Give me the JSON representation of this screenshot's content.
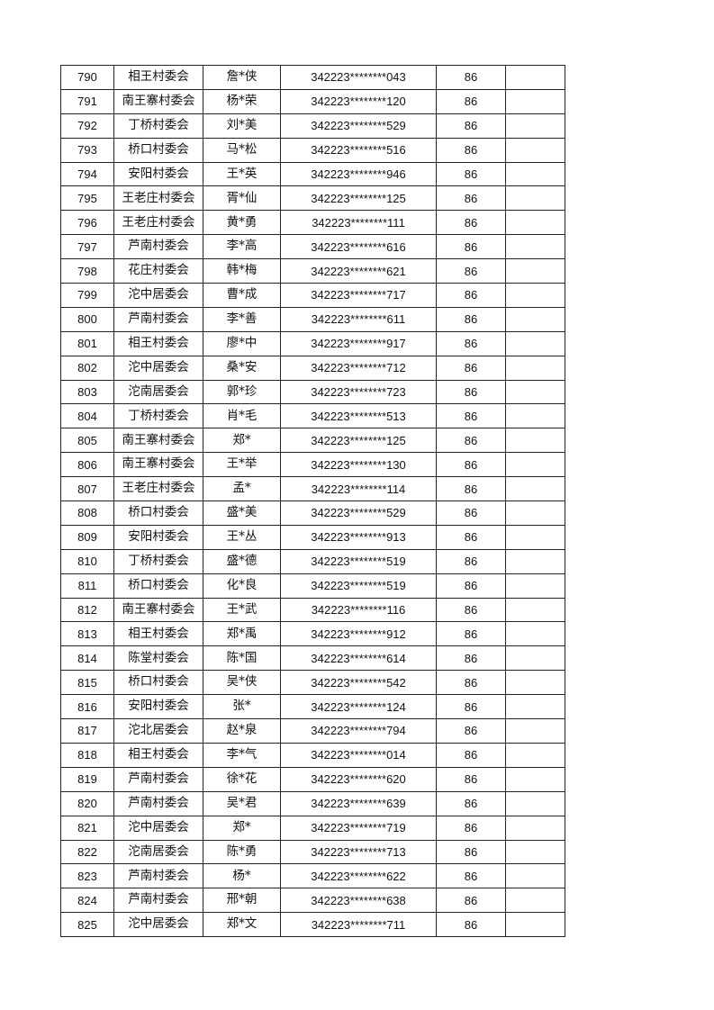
{
  "table": {
    "rows": [
      [
        "790",
        "相王村委会",
        "詹*侠",
        "342223********043",
        "86",
        ""
      ],
      [
        "791",
        "南王寨村委会",
        "杨*荣",
        "342223********120",
        "86",
        ""
      ],
      [
        "792",
        "丁桥村委会",
        "刘*美",
        "342223********529",
        "86",
        ""
      ],
      [
        "793",
        "桥口村委会",
        "马*松",
        "342223********516",
        "86",
        ""
      ],
      [
        "794",
        "安阳村委会",
        "王*英",
        "342223********946",
        "86",
        ""
      ],
      [
        "795",
        "王老庄村委会",
        "胥*仙",
        "342223********125",
        "86",
        ""
      ],
      [
        "796",
        "王老庄村委会",
        "黄*勇",
        "342223********111",
        "86",
        ""
      ],
      [
        "797",
        "芦南村委会",
        "李*高",
        "342223********616",
        "86",
        ""
      ],
      [
        "798",
        "花庄村委会",
        "韩*梅",
        "342223********621",
        "86",
        ""
      ],
      [
        "799",
        "沱中居委会",
        "曹*成",
        "342223********717",
        "86",
        ""
      ],
      [
        "800",
        "芦南村委会",
        "李*善",
        "342223********611",
        "86",
        ""
      ],
      [
        "801",
        "相王村委会",
        "廖*中",
        "342223********917",
        "86",
        ""
      ],
      [
        "802",
        "沱中居委会",
        "桑*安",
        "342223********712",
        "86",
        ""
      ],
      [
        "803",
        "沱南居委会",
        "郭*珍",
        "342223********723",
        "86",
        ""
      ],
      [
        "804",
        "丁桥村委会",
        "肖*毛",
        "342223********513",
        "86",
        ""
      ],
      [
        "805",
        "南王寨村委会",
        "郑*",
        "342223********125",
        "86",
        ""
      ],
      [
        "806",
        "南王寨村委会",
        "王*举",
        "342223********130",
        "86",
        ""
      ],
      [
        "807",
        "王老庄村委会",
        "孟*",
        "342223********114",
        "86",
        ""
      ],
      [
        "808",
        "桥口村委会",
        "盛*美",
        "342223********529",
        "86",
        ""
      ],
      [
        "809",
        "安阳村委会",
        "王*丛",
        "342223********913",
        "86",
        ""
      ],
      [
        "810",
        "丁桥村委会",
        "盛*德",
        "342223********519",
        "86",
        ""
      ],
      [
        "811",
        "桥口村委会",
        "化*良",
        "342223********519",
        "86",
        ""
      ],
      [
        "812",
        "南王寨村委会",
        "王*武",
        "342223********116",
        "86",
        ""
      ],
      [
        "813",
        "相王村委会",
        "郑*禹",
        "342223********912",
        "86",
        ""
      ],
      [
        "814",
        "陈堂村委会",
        "陈*国",
        "342223********614",
        "86",
        ""
      ],
      [
        "815",
        "桥口村委会",
        "吴*侠",
        "342223********542",
        "86",
        ""
      ],
      [
        "816",
        "安阳村委会",
        "张*",
        "342223********124",
        "86",
        ""
      ],
      [
        "817",
        "沱北居委会",
        "赵*泉",
        "342223********794",
        "86",
        ""
      ],
      [
        "818",
        "相王村委会",
        "李*气",
        "342223********014",
        "86",
        ""
      ],
      [
        "819",
        "芦南村委会",
        "徐*花",
        "342223********620",
        "86",
        ""
      ],
      [
        "820",
        "芦南村委会",
        "吴*君",
        "342223********639",
        "86",
        ""
      ],
      [
        "821",
        "沱中居委会",
        "郑*",
        "342223********719",
        "86",
        ""
      ],
      [
        "822",
        "沱南居委会",
        "陈*勇",
        "342223********713",
        "86",
        ""
      ],
      [
        "823",
        "芦南村委会",
        "杨*",
        "342223********622",
        "86",
        ""
      ],
      [
        "824",
        "芦南村委会",
        "邢*朝",
        "342223********638",
        "86",
        ""
      ],
      [
        "825",
        "沱中居委会",
        "郑*文",
        "342223********711",
        "86",
        ""
      ]
    ]
  }
}
